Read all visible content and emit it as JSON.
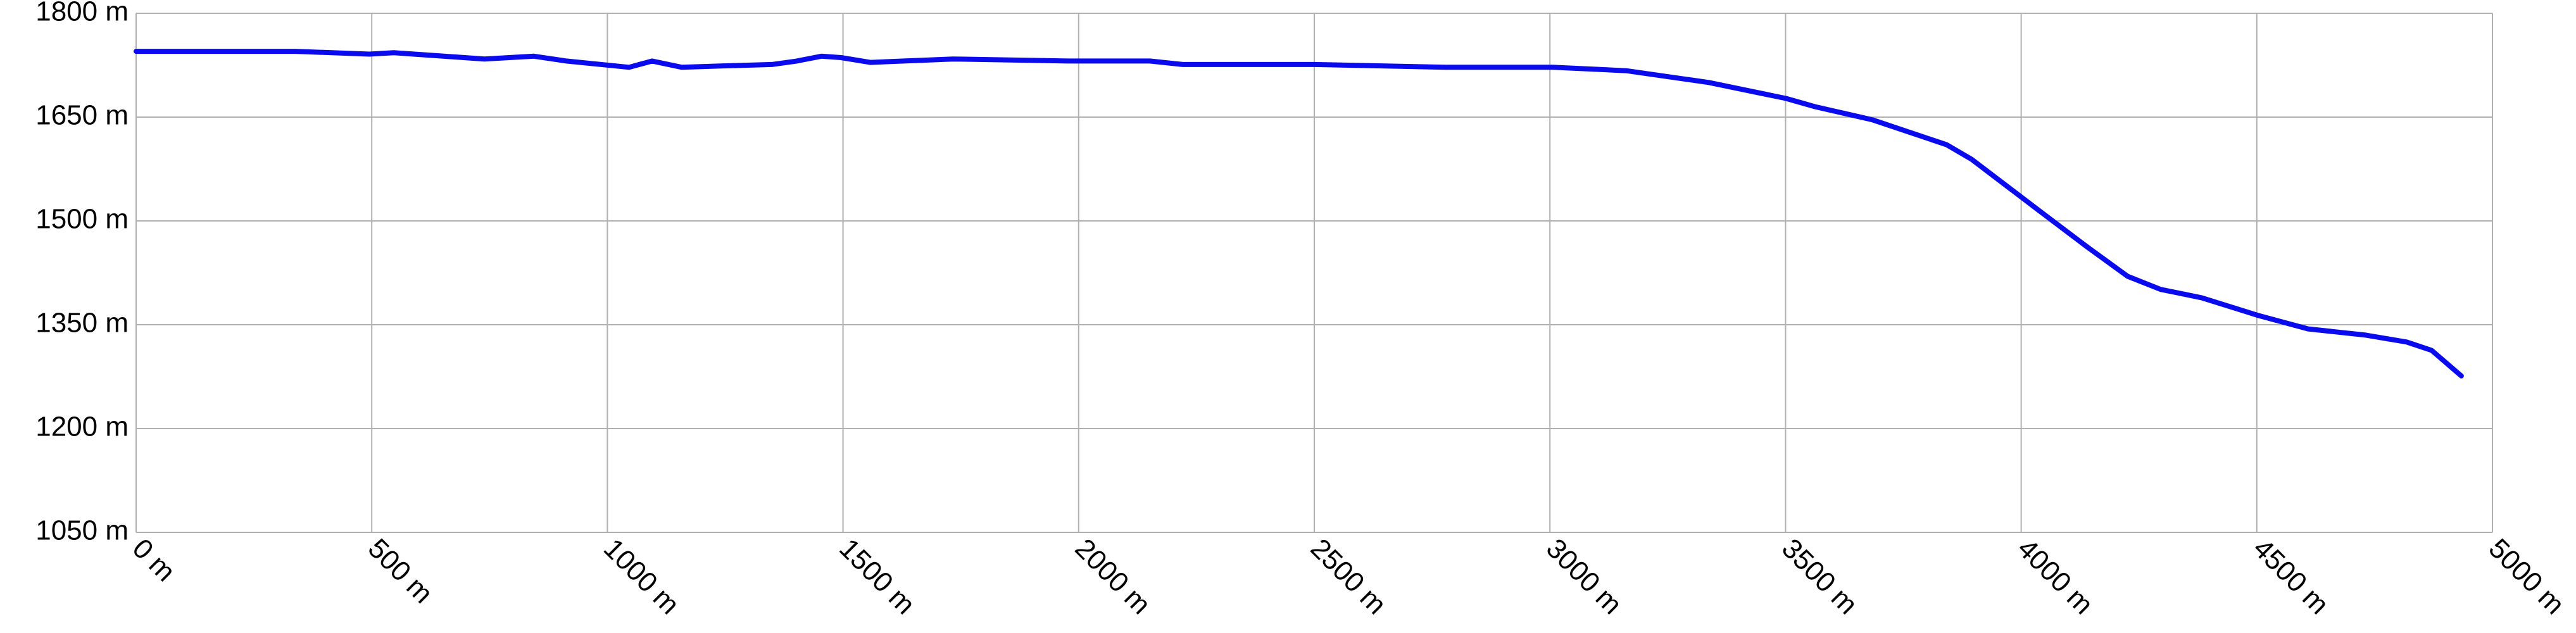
{
  "chart_data": {
    "type": "line",
    "x": [
      0,
      164,
      338,
      495,
      547,
      739,
      844,
      913,
      1046,
      1095,
      1158,
      1245,
      1349,
      1402,
      1454,
      1496,
      1558,
      1733,
      1977,
      2151,
      2221,
      2500,
      2779,
      2918,
      3006,
      3162,
      3337,
      3501,
      3563,
      3685,
      3842,
      3895,
      4034,
      4139,
      4226,
      4296,
      4383,
      4505,
      4609,
      4731,
      4818,
      4871,
      4934
    ],
    "values": [
      1745,
      1745,
      1745,
      1741,
      1743,
      1734,
      1738,
      1731,
      1722,
      1731,
      1722,
      1724,
      1726,
      1731,
      1738,
      1736,
      1729,
      1734,
      1731,
      1731,
      1726,
      1726,
      1722,
      1722,
      1722,
      1717,
      1700,
      1677,
      1665,
      1646,
      1610,
      1589,
      1517,
      1463,
      1420,
      1401,
      1389,
      1363,
      1344,
      1335,
      1325,
      1313,
      1276
    ],
    "color": "#0a0aee",
    "xlim": [
      0,
      5000
    ],
    "xticks": [
      {
        "value": 0,
        "label": "0 m"
      },
      {
        "value": 500,
        "label": "500 m"
      },
      {
        "value": 1000,
        "label": "1000 m"
      },
      {
        "value": 1500,
        "label": "1500 m"
      },
      {
        "value": 2000,
        "label": "2000 m"
      },
      {
        "value": 2500,
        "label": "2500 m"
      },
      {
        "value": 3000,
        "label": "3000 m"
      },
      {
        "value": 3500,
        "label": "3500 m"
      },
      {
        "value": 4000,
        "label": "4000 m"
      },
      {
        "value": 4500,
        "label": "4500 m"
      },
      {
        "value": 5000,
        "label": "5000 m"
      }
    ],
    "ylim": [
      1050,
      1800
    ],
    "yticks": [
      {
        "value": 1050,
        "label": "1050 m"
      },
      {
        "value": 1200,
        "label": "1200 m"
      },
      {
        "value": 1350,
        "label": "1350 m"
      },
      {
        "value": 1500,
        "label": "1500 m"
      },
      {
        "value": 1650,
        "label": "1650 m"
      },
      {
        "value": 1800,
        "label": "1800 m"
      }
    ],
    "grid": true
  }
}
